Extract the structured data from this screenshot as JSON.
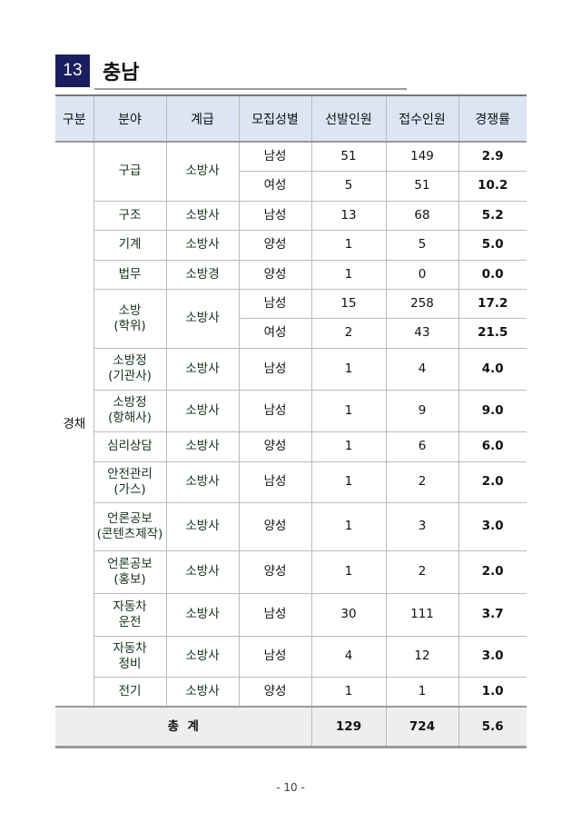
{
  "section": {
    "number": "13",
    "title": "충남"
  },
  "headers": [
    "구분",
    "분야",
    "계급",
    "모집성별",
    "선발인원",
    "접수인원",
    "경쟁률"
  ],
  "category": "경채",
  "groups": [
    {
      "field": "구급",
      "rank": "소방사",
      "rows": [
        {
          "gender": "남성",
          "selected": "51",
          "applied": "149",
          "ratio": "2.9"
        },
        {
          "gender": "여성",
          "selected": "5",
          "applied": "51",
          "ratio": "10.2"
        }
      ]
    },
    {
      "field": "구조",
      "rank": "소방사",
      "rows": [
        {
          "gender": "남성",
          "selected": "13",
          "applied": "68",
          "ratio": "5.2"
        }
      ]
    },
    {
      "field": "기계",
      "rank": "소방사",
      "rows": [
        {
          "gender": "양성",
          "selected": "1",
          "applied": "5",
          "ratio": "5.0"
        }
      ]
    },
    {
      "field": "법무",
      "rank": "소방경",
      "rows": [
        {
          "gender": "양성",
          "selected": "1",
          "applied": "0",
          "ratio": "0.0"
        }
      ]
    },
    {
      "field": "소방\n(학위)",
      "rank": "소방사",
      "rows": [
        {
          "gender": "남성",
          "selected": "15",
          "applied": "258",
          "ratio": "17.2"
        },
        {
          "gender": "여성",
          "selected": "2",
          "applied": "43",
          "ratio": "21.5"
        }
      ]
    },
    {
      "field": "소방정\n(기관사)",
      "rank": "소방사",
      "rows": [
        {
          "gender": "남성",
          "selected": "1",
          "applied": "4",
          "ratio": "4.0"
        }
      ]
    },
    {
      "field": "소방정\n(항해사)",
      "rank": "소방사",
      "rows": [
        {
          "gender": "남성",
          "selected": "1",
          "applied": "9",
          "ratio": "9.0"
        }
      ]
    },
    {
      "field": "심리상담",
      "rank": "소방사",
      "rows": [
        {
          "gender": "양성",
          "selected": "1",
          "applied": "6",
          "ratio": "6.0"
        }
      ]
    },
    {
      "field": "안전관리\n(가스)",
      "rank": "소방사",
      "rows": [
        {
          "gender": "남성",
          "selected": "1",
          "applied": "2",
          "ratio": "2.0"
        }
      ]
    },
    {
      "field": "언론공보\n(콘텐츠제작)",
      "rank": "소방사",
      "rows": [
        {
          "gender": "양성",
          "selected": "1",
          "applied": "3",
          "ratio": "3.0"
        }
      ]
    },
    {
      "field": "언론공보\n(홍보)",
      "rank": "소방사",
      "rows": [
        {
          "gender": "양성",
          "selected": "1",
          "applied": "2",
          "ratio": "2.0"
        }
      ]
    },
    {
      "field": "자동차\n운전",
      "rank": "소방사",
      "rows": [
        {
          "gender": "남성",
          "selected": "30",
          "applied": "111",
          "ratio": "3.7"
        }
      ]
    },
    {
      "field": "자동차\n정비",
      "rank": "소방사",
      "rows": [
        {
          "gender": "남성",
          "selected": "4",
          "applied": "12",
          "ratio": "3.0"
        }
      ]
    },
    {
      "field": "전기",
      "rank": "소방사",
      "rows": [
        {
          "gender": "양성",
          "selected": "1",
          "applied": "1",
          "ratio": "1.0"
        }
      ]
    }
  ],
  "total": {
    "label": "총  계",
    "selected": "129",
    "applied": "724",
    "ratio": "5.6"
  },
  "page_number": "- 10 -"
}
